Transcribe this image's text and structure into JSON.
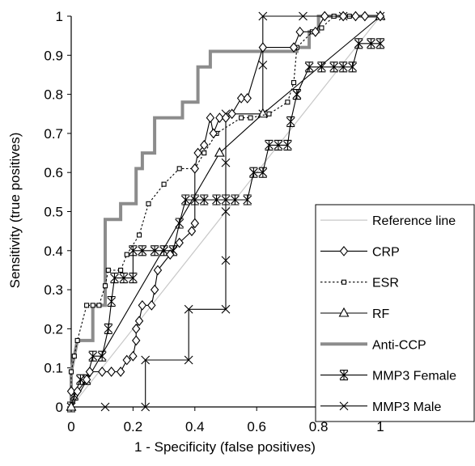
{
  "chart_data": {
    "type": "line",
    "title": "",
    "xlabel": "1 - Specificity (false positives)",
    "ylabel": "Sensitivity (true positives)",
    "xlim": [
      0,
      1
    ],
    "ylim": [
      0,
      1
    ],
    "xticks": [
      "0",
      "0.2",
      "0.4",
      "0.6",
      "0.8",
      "1"
    ],
    "yticks": [
      "0",
      "0.1",
      "0.2",
      "0.3",
      "0.4",
      "0.5",
      "0.6",
      "0.7",
      "0.8",
      "0.9",
      "1"
    ],
    "grid": false,
    "legend_position": "bottom-right",
    "series": [
      {
        "name": "Reference line",
        "color": "#c8c8c8",
        "marker": "none",
        "dash": "solid",
        "points": [
          [
            0,
            0
          ],
          [
            1,
            1
          ]
        ]
      },
      {
        "name": "CRP",
        "color": "#000000",
        "marker": "diamond",
        "dash": "solid",
        "points": [
          [
            0,
            0.04
          ],
          [
            0.02,
            0.04
          ],
          [
            0.05,
            0.07
          ],
          [
            0.06,
            0.09
          ],
          [
            0.1,
            0.09
          ],
          [
            0.13,
            0.09
          ],
          [
            0.16,
            0.09
          ],
          [
            0.18,
            0.12
          ],
          [
            0.2,
            0.13
          ],
          [
            0.21,
            0.17
          ],
          [
            0.21,
            0.2
          ],
          [
            0.22,
            0.22
          ],
          [
            0.23,
            0.26
          ],
          [
            0.26,
            0.26
          ],
          [
            0.27,
            0.3
          ],
          [
            0.28,
            0.35
          ],
          [
            0.32,
            0.39
          ],
          [
            0.35,
            0.42
          ],
          [
            0.39,
            0.45
          ],
          [
            0.4,
            0.47
          ],
          [
            0.4,
            0.61
          ],
          [
            0.41,
            0.65
          ],
          [
            0.43,
            0.67
          ],
          [
            0.45,
            0.74
          ],
          [
            0.46,
            0.7
          ],
          [
            0.48,
            0.74
          ],
          [
            0.5,
            0.74
          ],
          [
            0.52,
            0.75
          ],
          [
            0.55,
            0.79
          ],
          [
            0.57,
            0.79
          ],
          [
            0.62,
            0.92
          ],
          [
            0.72,
            0.92
          ],
          [
            0.74,
            0.96
          ],
          [
            0.79,
            0.96
          ],
          [
            0.82,
            1
          ],
          [
            0.88,
            1
          ],
          [
            0.92,
            1
          ],
          [
            0.95,
            1
          ],
          [
            1,
            1
          ]
        ]
      },
      {
        "name": "ESR",
        "color": "#000000",
        "marker": "square",
        "dash": "dotted",
        "points": [
          [
            0,
            0.04
          ],
          [
            0,
            0.09
          ],
          [
            0.01,
            0.13
          ],
          [
            0.02,
            0.17
          ],
          [
            0.05,
            0.26
          ],
          [
            0.07,
            0.26
          ],
          [
            0.09,
            0.26
          ],
          [
            0.11,
            0.31
          ],
          [
            0.12,
            0.35
          ],
          [
            0.16,
            0.35
          ],
          [
            0.18,
            0.39
          ],
          [
            0.22,
            0.44
          ],
          [
            0.25,
            0.52
          ],
          [
            0.3,
            0.57
          ],
          [
            0.35,
            0.61
          ],
          [
            0.4,
            0.61
          ],
          [
            0.43,
            0.65
          ],
          [
            0.47,
            0.7
          ],
          [
            0.55,
            0.74
          ],
          [
            0.58,
            0.74
          ],
          [
            0.64,
            0.75
          ],
          [
            0.7,
            0.78
          ],
          [
            0.72,
            0.83
          ],
          [
            0.73,
            0.92
          ],
          [
            0.78,
            0.96
          ],
          [
            0.81,
            0.97
          ],
          [
            0.85,
            1
          ],
          [
            0.9,
            1
          ],
          [
            1,
            1
          ]
        ]
      },
      {
        "name": "RF",
        "color": "#000000",
        "marker": "triangle",
        "dash": "solid",
        "points": [
          [
            0,
            0
          ],
          [
            0.48,
            0.65
          ],
          [
            0.62,
            0.75
          ],
          [
            1,
            1
          ]
        ]
      },
      {
        "name": "Anti-CCP",
        "color": "#8c8c8c",
        "marker": "none",
        "dash": "solid",
        "thick": true,
        "points": [
          [
            0,
            0
          ],
          [
            0,
            0.09
          ],
          [
            0.02,
            0.17
          ],
          [
            0.07,
            0.17
          ],
          [
            0.07,
            0.26
          ],
          [
            0.11,
            0.26
          ],
          [
            0.11,
            0.48
          ],
          [
            0.16,
            0.48
          ],
          [
            0.16,
            0.52
          ],
          [
            0.21,
            0.52
          ],
          [
            0.21,
            0.61
          ],
          [
            0.23,
            0.61
          ],
          [
            0.23,
            0.65
          ],
          [
            0.27,
            0.65
          ],
          [
            0.27,
            0.74
          ],
          [
            0.36,
            0.74
          ],
          [
            0.36,
            0.78
          ],
          [
            0.41,
            0.78
          ],
          [
            0.41,
            0.87
          ],
          [
            0.45,
            0.87
          ],
          [
            0.45,
            0.91
          ],
          [
            0.73,
            0.91
          ],
          [
            0.73,
            0.92
          ],
          [
            0.77,
            0.92
          ],
          [
            0.77,
            0.96
          ],
          [
            0.8,
            0.96
          ],
          [
            0.8,
            1
          ],
          [
            1,
            1
          ]
        ]
      },
      {
        "name": "MMP3 Female",
        "color": "#000000",
        "marker": "star",
        "dash": "solid",
        "points": [
          [
            0,
            0
          ],
          [
            0.01,
            0.03
          ],
          [
            0.03,
            0.07
          ],
          [
            0.05,
            0.07
          ],
          [
            0.07,
            0.13
          ],
          [
            0.1,
            0.13
          ],
          [
            0.12,
            0.2
          ],
          [
            0.13,
            0.27
          ],
          [
            0.14,
            0.33
          ],
          [
            0.17,
            0.33
          ],
          [
            0.2,
            0.33
          ],
          [
            0.2,
            0.4
          ],
          [
            0.23,
            0.4
          ],
          [
            0.27,
            0.4
          ],
          [
            0.3,
            0.4
          ],
          [
            0.33,
            0.4
          ],
          [
            0.35,
            0.47
          ],
          [
            0.37,
            0.53
          ],
          [
            0.4,
            0.53
          ],
          [
            0.43,
            0.53
          ],
          [
            0.47,
            0.53
          ],
          [
            0.5,
            0.53
          ],
          [
            0.53,
            0.53
          ],
          [
            0.57,
            0.53
          ],
          [
            0.59,
            0.6
          ],
          [
            0.62,
            0.6
          ],
          [
            0.64,
            0.67
          ],
          [
            0.67,
            0.67
          ],
          [
            0.7,
            0.67
          ],
          [
            0.71,
            0.73
          ],
          [
            0.73,
            0.8
          ],
          [
            0.73,
            0.8
          ],
          [
            0.77,
            0.87
          ],
          [
            0.81,
            0.87
          ],
          [
            0.85,
            0.87
          ],
          [
            0.88,
            0.87
          ],
          [
            0.91,
            0.87
          ],
          [
            0.93,
            0.93
          ],
          [
            0.97,
            0.93
          ],
          [
            1,
            0.93
          ]
        ]
      },
      {
        "name": "MMP3 Male",
        "color": "#000000",
        "marker": "x",
        "dash": "solid",
        "points": [
          [
            0,
            0
          ],
          [
            0.11,
            0
          ],
          [
            0.24,
            0
          ],
          [
            0.24,
            0.12
          ],
          [
            0.38,
            0.12
          ],
          [
            0.38,
            0.25
          ],
          [
            0.5,
            0.25
          ],
          [
            0.5,
            0.375
          ],
          [
            0.5,
            0.5
          ],
          [
            0.5,
            0.625
          ],
          [
            0.5,
            0.75
          ],
          [
            0.62,
            0.75
          ],
          [
            0.62,
            0.875
          ],
          [
            0.62,
            1
          ],
          [
            0.75,
            1
          ],
          [
            0.88,
            1
          ],
          [
            1,
            1
          ]
        ]
      }
    ]
  }
}
